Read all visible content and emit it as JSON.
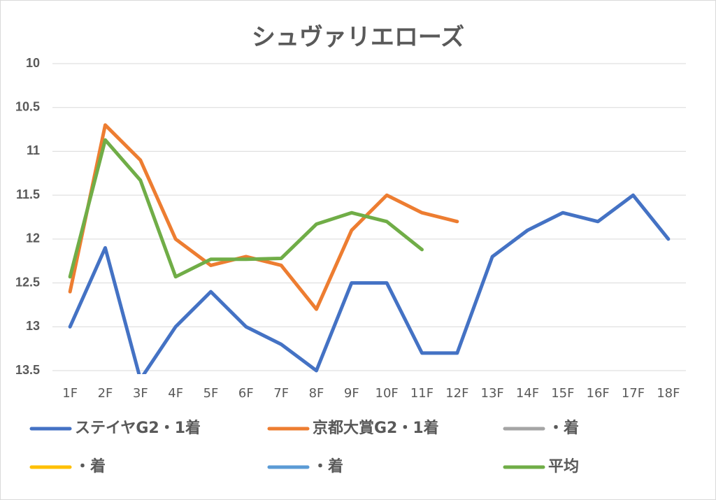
{
  "chart_data": {
    "type": "line",
    "title": "シュヴァリエローズ",
    "categories": [
      "1F",
      "2F",
      "3F",
      "4F",
      "5F",
      "6F",
      "7F",
      "8F",
      "9F",
      "10F",
      "11F",
      "12F",
      "13F",
      "14F",
      "15F",
      "16F",
      "17F",
      "18F"
    ],
    "series": [
      {
        "name": "ステイヤG2・1着",
        "color": "#4472c4",
        "values": [
          13,
          12.1,
          13.6,
          13,
          12.6,
          13,
          13.2,
          13.5,
          12.5,
          12.5,
          13.3,
          13.3,
          12.2,
          11.9,
          11.7,
          11.8,
          11.5,
          12
        ]
      },
      {
        "name": "京都大賞G2・1着",
        "color": "#ed7d31",
        "values": [
          12.6,
          10.7,
          11.1,
          12,
          12.3,
          12.2,
          12.3,
          12.8,
          11.9,
          11.5,
          11.7,
          11.8,
          null,
          null,
          null,
          null,
          null,
          null
        ]
      },
      {
        "name": "・着",
        "color": "#a5a5a5",
        "values": [
          null,
          null,
          null,
          null,
          null,
          null,
          null,
          null,
          null,
          null,
          null,
          null,
          null,
          null,
          null,
          null,
          null,
          null
        ]
      },
      {
        "name": "・着",
        "color": "#ffc000",
        "values": [
          null,
          null,
          null,
          null,
          null,
          null,
          null,
          null,
          null,
          null,
          null,
          null,
          null,
          null,
          null,
          null,
          null,
          null
        ]
      },
      {
        "name": "・着",
        "color": "#5b9bd5",
        "values": [
          null,
          null,
          null,
          null,
          null,
          null,
          null,
          null,
          null,
          null,
          null,
          null,
          null,
          null,
          null,
          null,
          null,
          null
        ]
      },
      {
        "name": "平均",
        "color": "#70ad47",
        "values": [
          12.43,
          10.87,
          11.33,
          12.43,
          12.23,
          12.23,
          12.22,
          11.83,
          11.7,
          11.8,
          12.12,
          null,
          null,
          null,
          null,
          null,
          null,
          null
        ]
      }
    ],
    "ylim": [
      10,
      13.5
    ],
    "yticks": [
      10,
      10.5,
      11,
      11.5,
      12,
      12.5,
      13,
      13.5
    ],
    "y_inverted": true,
    "grid": true
  }
}
